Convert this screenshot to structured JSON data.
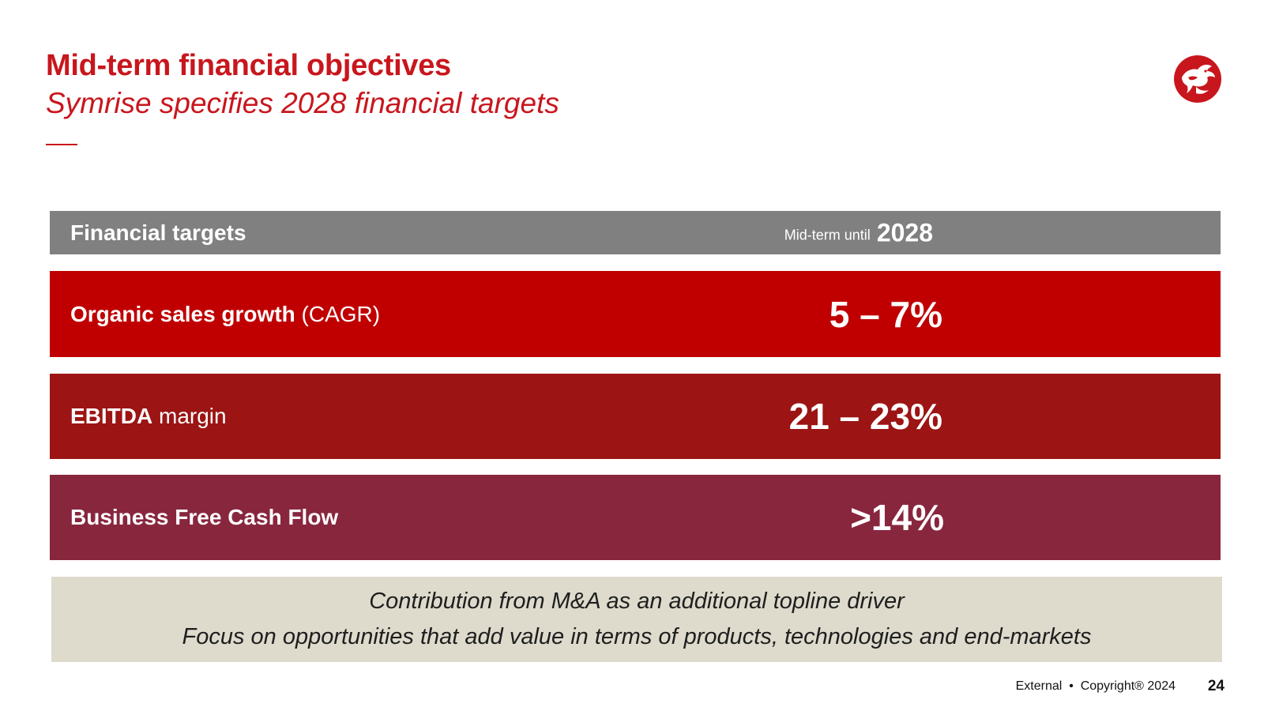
{
  "title": {
    "main": "Mid-term financial objectives",
    "sub": "Symrise specifies 2028 financial targets"
  },
  "colors": {
    "brand": "#c8161d",
    "header_bar": "#808080",
    "row1": "#c00000",
    "row2": "#9c1414",
    "row3": "#88263e",
    "note_bg": "#dedbcd"
  },
  "logo": {
    "icon": "dragon-logo-icon"
  },
  "table": {
    "header": {
      "label": "Financial targets",
      "period_prefix": "Mid-term until",
      "period_year": "2028"
    },
    "rows": [
      {
        "label_bold": "Organic sales growth",
        "label_rest": " (CAGR)",
        "value": "5 – 7%"
      },
      {
        "label_bold": "EBITDA",
        "label_rest": " margin",
        "value": "21 – 23%"
      },
      {
        "label_bold": "Business Free Cash Flow",
        "label_rest": "",
        "value": ">14%"
      }
    ]
  },
  "note": {
    "line1": "Contribution from M&A as an additional topline driver",
    "line2": "Focus on opportunities that add value in terms of products, technologies and end-markets"
  },
  "footer": {
    "text": "External  •  Copyright® 2024",
    "page": "24"
  }
}
